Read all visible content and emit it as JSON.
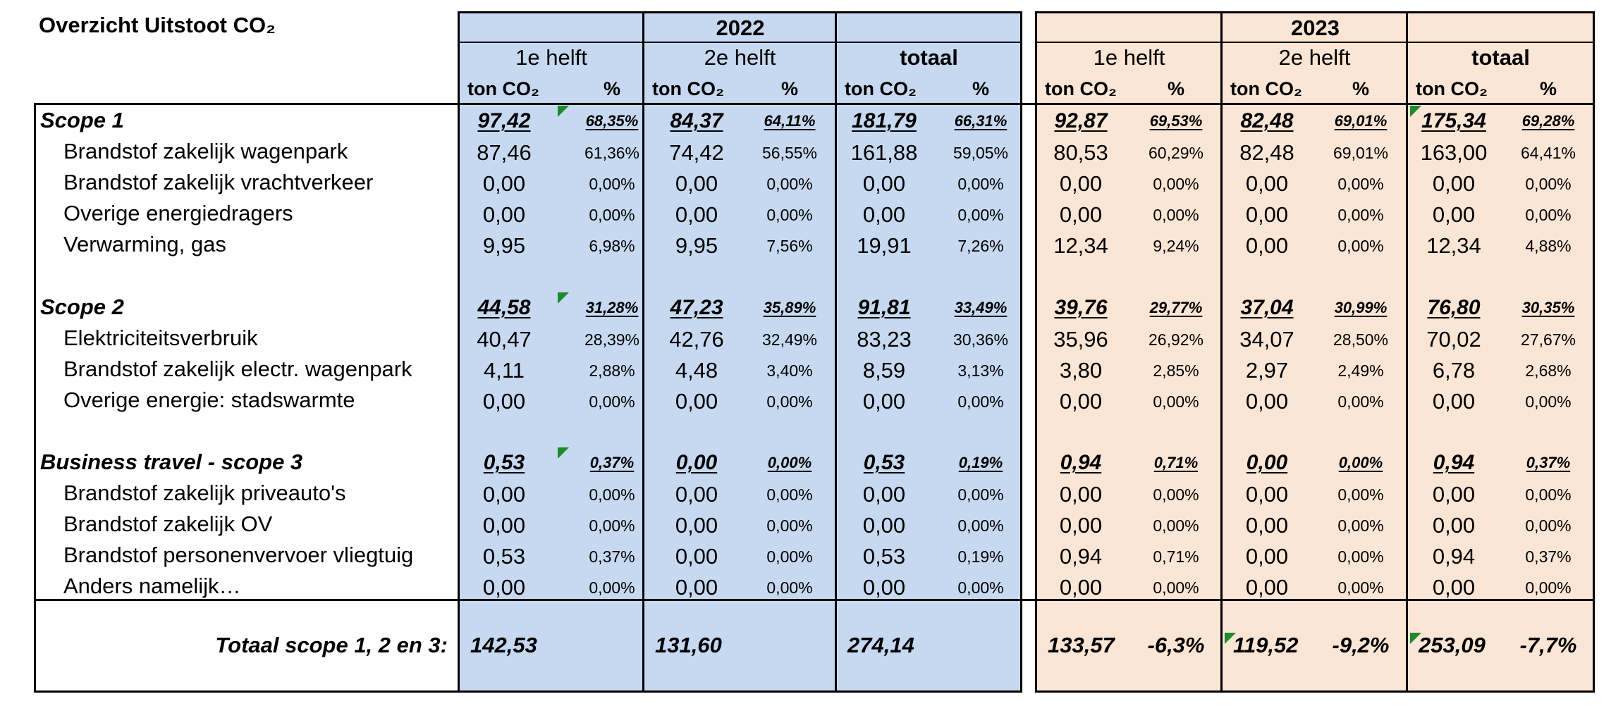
{
  "title": "Overzicht Uitstoot CO₂",
  "colors": {
    "year_2022_bg": "#c6d9f0",
    "year_2023_bg": "#fbe5d5",
    "comment_flag": "#1f8a2b"
  },
  "years": [
    "2022",
    "2023"
  ],
  "half_labels": [
    "1e helft",
    "2e helft",
    "totaal"
  ],
  "unit_label": "ton CO₂",
  "pct_label": "%",
  "rows": [
    {
      "label": "Scope 1",
      "type": "section",
      "values": [
        "97,42",
        "68,35%",
        "84,37",
        "64,11%",
        "181,79",
        "66,31%",
        "92,87",
        "69,53%",
        "82,48",
        "69,01%",
        "175,34",
        "69,28%"
      ]
    },
    {
      "label": "Brandstof zakelijk wagenpark",
      "type": "item",
      "values": [
        "87,46",
        "61,36%",
        "74,42",
        "56,55%",
        "161,88",
        "59,05%",
        "80,53",
        "60,29%",
        "82,48",
        "69,01%",
        "163,00",
        "64,41%"
      ]
    },
    {
      "label": "Brandstof zakelijk vrachtverkeer",
      "type": "item",
      "values": [
        "0,00",
        "0,00%",
        "0,00",
        "0,00%",
        "0,00",
        "0,00%",
        "0,00",
        "0,00%",
        "0,00",
        "0,00%",
        "0,00",
        "0,00%"
      ]
    },
    {
      "label": "Overige energiedragers",
      "type": "item",
      "values": [
        "0,00",
        "0,00%",
        "0,00",
        "0,00%",
        "0,00",
        "0,00%",
        "0,00",
        "0,00%",
        "0,00",
        "0,00%",
        "0,00",
        "0,00%"
      ]
    },
    {
      "label": "Verwarming, gas",
      "type": "item",
      "values": [
        "9,95",
        "6,98%",
        "9,95",
        "7,56%",
        "19,91",
        "7,26%",
        "12,34",
        "9,24%",
        "0,00",
        "0,00%",
        "12,34",
        "4,88%"
      ]
    },
    {
      "label": "Scope 2",
      "type": "section",
      "values": [
        "44,58",
        "31,28%",
        "47,23",
        "35,89%",
        "91,81",
        "33,49%",
        "39,76",
        "29,77%",
        "37,04",
        "30,99%",
        "76,80",
        "30,35%"
      ]
    },
    {
      "label": "Elektriciteitsverbruik",
      "type": "item",
      "values": [
        "40,47",
        "28,39%",
        "42,76",
        "32,49%",
        "83,23",
        "30,36%",
        "35,96",
        "26,92%",
        "34,07",
        "28,50%",
        "70,02",
        "27,67%"
      ]
    },
    {
      "label": "Brandstof zakelijk electr. wagenpark",
      "type": "item",
      "values": [
        "4,11",
        "2,88%",
        "4,48",
        "3,40%",
        "8,59",
        "3,13%",
        "3,80",
        "2,85%",
        "2,97",
        "2,49%",
        "6,78",
        "2,68%"
      ]
    },
    {
      "label": "Overige energie: stadswarmte",
      "type": "item",
      "values": [
        "0,00",
        "0,00%",
        "0,00",
        "0,00%",
        "0,00",
        "0,00%",
        "0,00",
        "0,00%",
        "0,00",
        "0,00%",
        "0,00",
        "0,00%"
      ]
    },
    {
      "label": "Business travel - scope 3",
      "type": "section",
      "values": [
        "0,53",
        "0,37%",
        "0,00",
        "0,00%",
        "0,53",
        "0,19%",
        "0,94",
        "0,71%",
        "0,00",
        "0,00%",
        "0,94",
        "0,37%"
      ]
    },
    {
      "label": "Brandstof zakelijk priveauto's",
      "type": "item",
      "values": [
        "0,00",
        "0,00%",
        "0,00",
        "0,00%",
        "0,00",
        "0,00%",
        "0,00",
        "0,00%",
        "0,00",
        "0,00%",
        "0,00",
        "0,00%"
      ]
    },
    {
      "label": "Brandstof zakelijk OV",
      "type": "item",
      "values": [
        "0,00",
        "0,00%",
        "0,00",
        "0,00%",
        "0,00",
        "0,00%",
        "0,00",
        "0,00%",
        "0,00",
        "0,00%",
        "0,00",
        "0,00%"
      ]
    },
    {
      "label": "Brandstof personenvervoer vliegtuig",
      "type": "item",
      "values": [
        "0,53",
        "0,37%",
        "0,00",
        "0,00%",
        "0,53",
        "0,19%",
        "0,94",
        "0,71%",
        "0,00",
        "0,00%",
        "0,94",
        "0,37%"
      ]
    },
    {
      "label": "Anders namelijk…",
      "type": "item",
      "values": [
        "0,00",
        "0,00%",
        "0,00",
        "0,00%",
        "0,00",
        "0,00%",
        "0,00",
        "0,00%",
        "0,00",
        "0,00%",
        "0,00",
        "0,00%"
      ]
    }
  ],
  "total": {
    "label": "Totaal scope 1, 2 en 3:",
    "values": [
      "142,53",
      "",
      "131,60",
      "",
      "274,14",
      "",
      "133,57",
      "-6,3%",
      "119,52",
      "-9,2%",
      "253,09",
      "-7,7%"
    ]
  }
}
